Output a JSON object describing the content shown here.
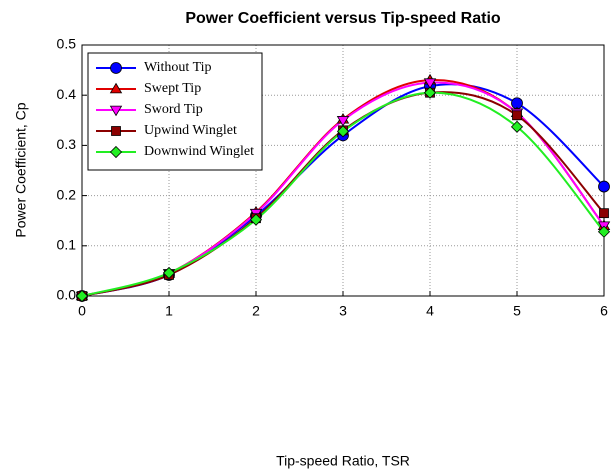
{
  "chart_data": {
    "type": "line",
    "title": "Power Coefficient versus Tip-speed Ratio",
    "x_label": "Tip-speed Ratio, TSR",
    "y_label": "Power Coefficient, Cp",
    "x": [
      0,
      1,
      2,
      3,
      4,
      5,
      6
    ],
    "xlim": [
      0,
      6
    ],
    "xticks": [
      0,
      1,
      2,
      3,
      4,
      5,
      6
    ],
    "ylim": [
      0,
      0.5
    ],
    "yticks": [
      {
        "value": 0,
        "label": "0.0"
      },
      0.1,
      0.2,
      0.3,
      0.4,
      0.5
    ],
    "grid": true,
    "smooth": true,
    "legend": "upper left",
    "series": [
      {
        "name": "Without Tip",
        "color": "#0000ff",
        "marker": "circle",
        "values": [
          0,
          0.042,
          0.16,
          0.32,
          0.418,
          0.384,
          0.218
        ]
      },
      {
        "name": "Swept Tip",
        "color": "#e00000",
        "marker": "triangle-up",
        "values": [
          0,
          0.045,
          0.167,
          0.352,
          0.43,
          0.365,
          0.14
        ]
      },
      {
        "name": "Sword Tip",
        "color": "#ff00ff",
        "marker": "triangle-down",
        "values": [
          0,
          0.045,
          0.165,
          0.35,
          0.425,
          0.365,
          0.14
        ]
      },
      {
        "name": "Upwind Winglet",
        "color": "#8b0000",
        "marker": "square",
        "values": [
          0,
          0.042,
          0.155,
          0.33,
          0.405,
          0.36,
          0.165
        ]
      },
      {
        "name": "Downwind Winglet",
        "color": "#22ee22",
        "marker": "diamond",
        "values": [
          0,
          0.046,
          0.152,
          0.328,
          0.405,
          0.337,
          0.128
        ]
      }
    ]
  }
}
